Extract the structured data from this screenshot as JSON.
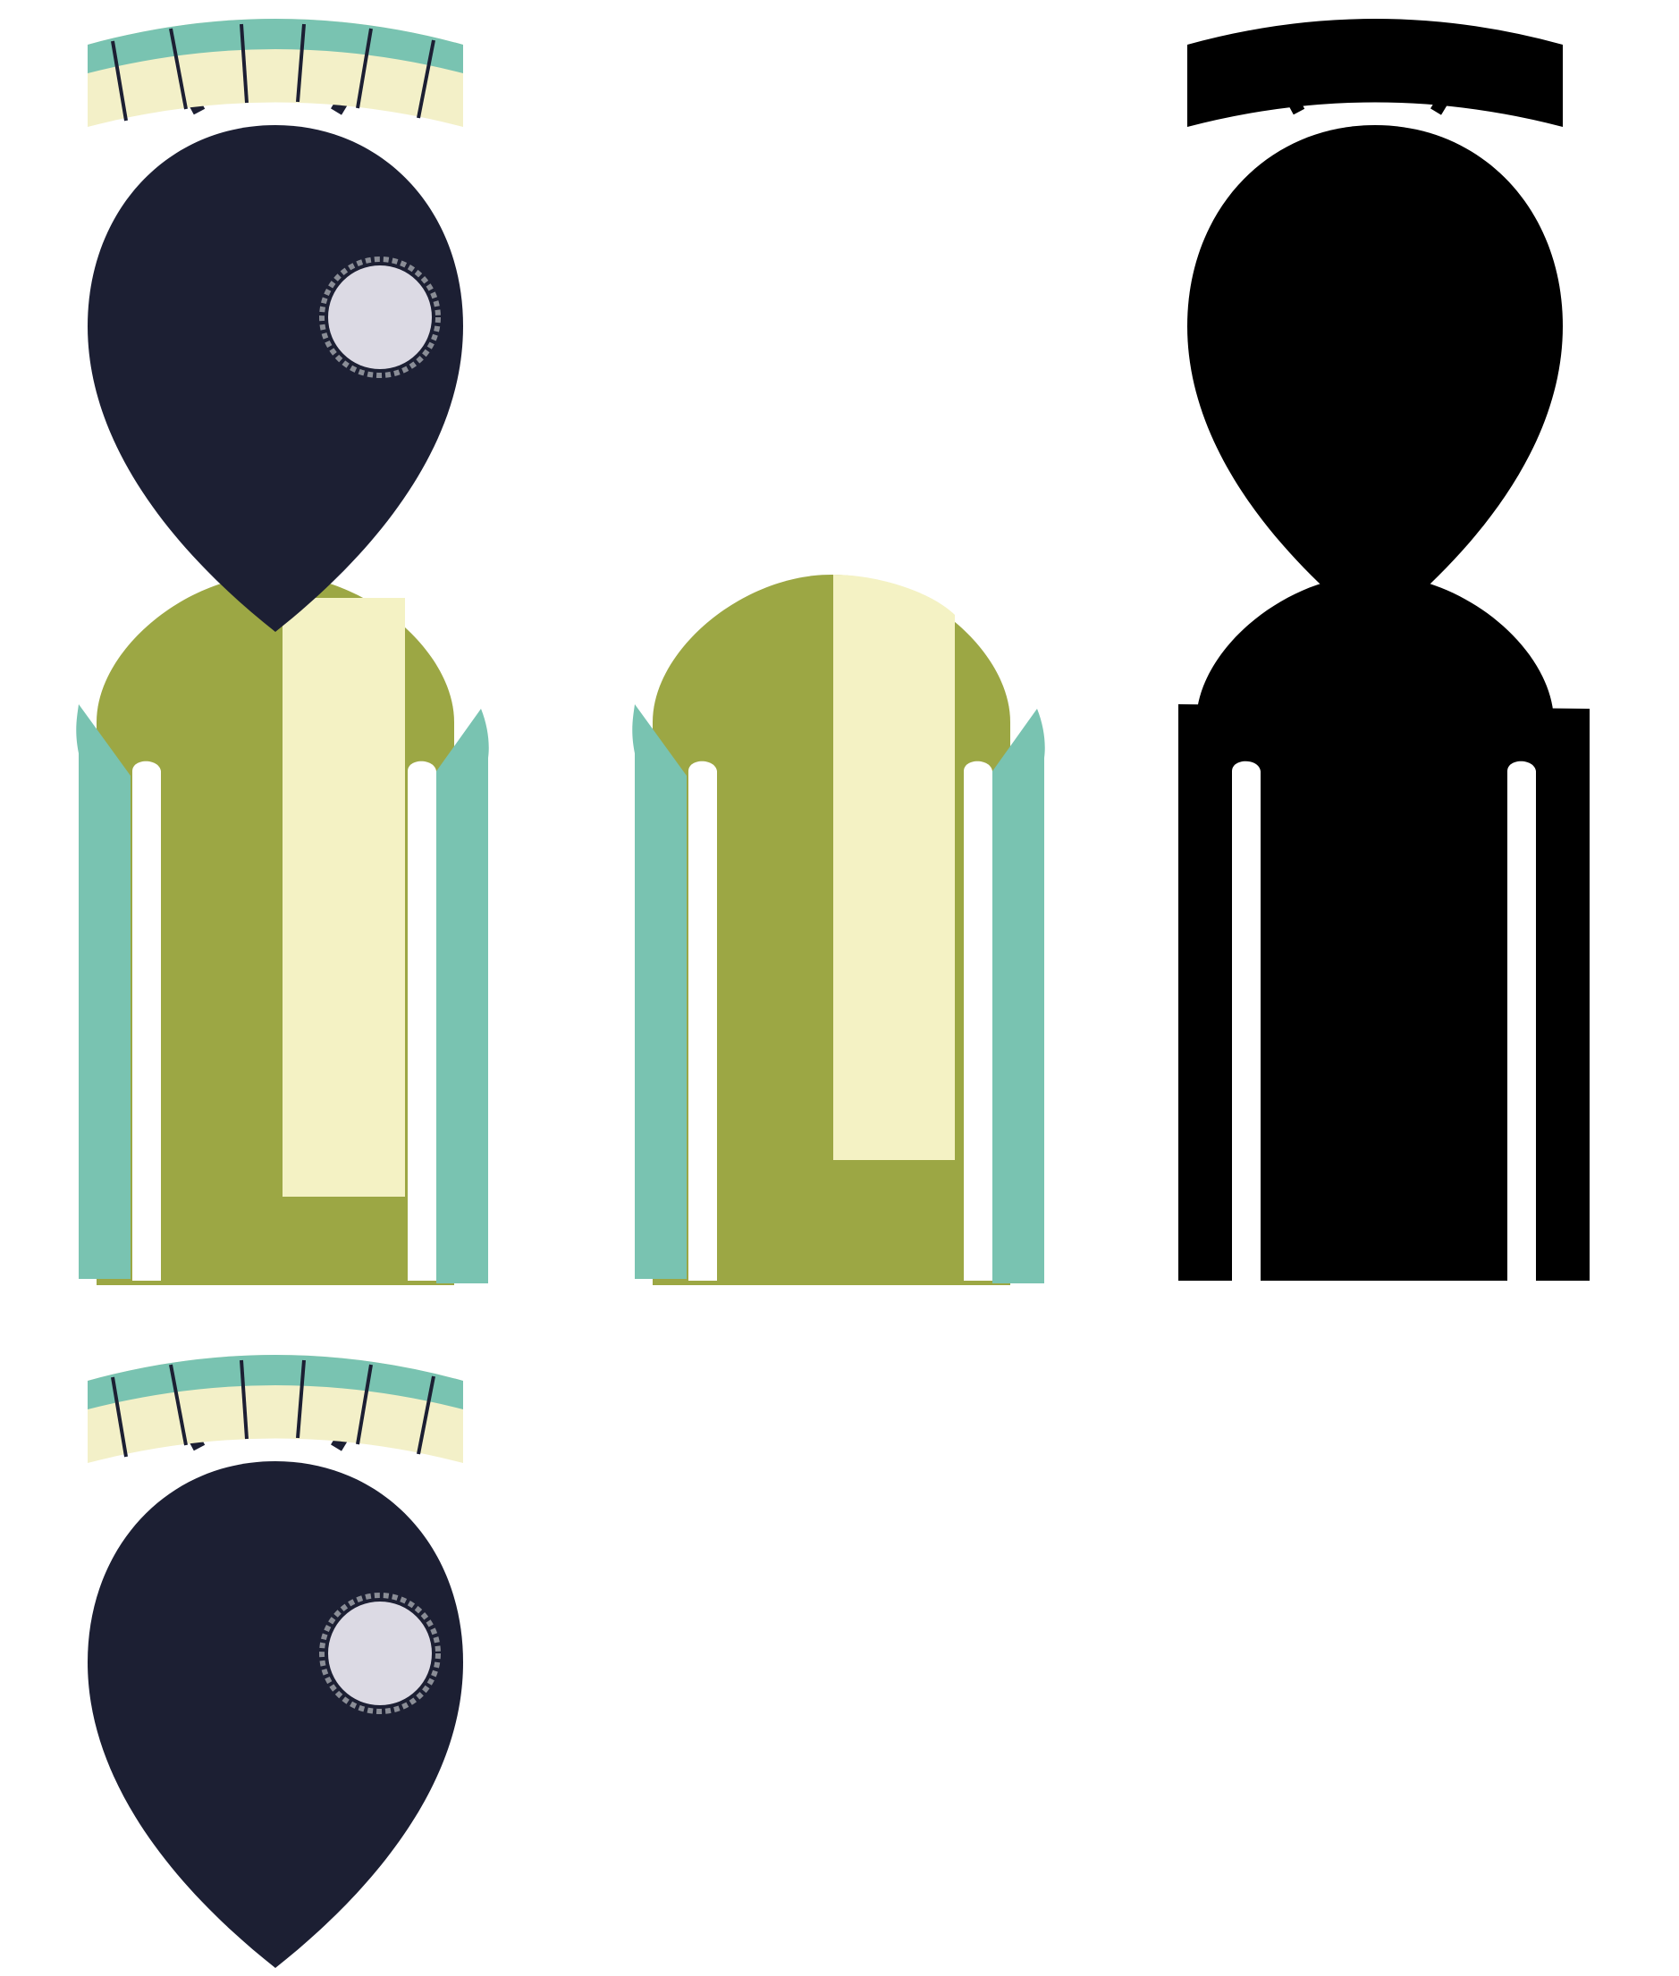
{
  "sheet": {
    "parts": [
      {
        "id": "full-character",
        "description_hidden": true
      },
      {
        "id": "body-only"
      },
      {
        "id": "silhouette"
      },
      {
        "id": "head-only"
      }
    ]
  },
  "colors": {
    "background": "#ffffff",
    "head": "#1c1f33",
    "eye_fill": "#dcdae4",
    "eye_ring": "#8a8d96",
    "antenna": "#1c1f33",
    "band_top": "#79c3b1",
    "band_bottom": "#f3f0c8",
    "band_ticks": "#1c1f33",
    "torso": "#9ca744",
    "stripe": "#f4f2c4",
    "arms": "#79c3b1",
    "silhouette": "#000000"
  },
  "icons": [
    "robot-head-icon",
    "robot-torso-icon",
    "robot-silhouette-icon"
  ]
}
